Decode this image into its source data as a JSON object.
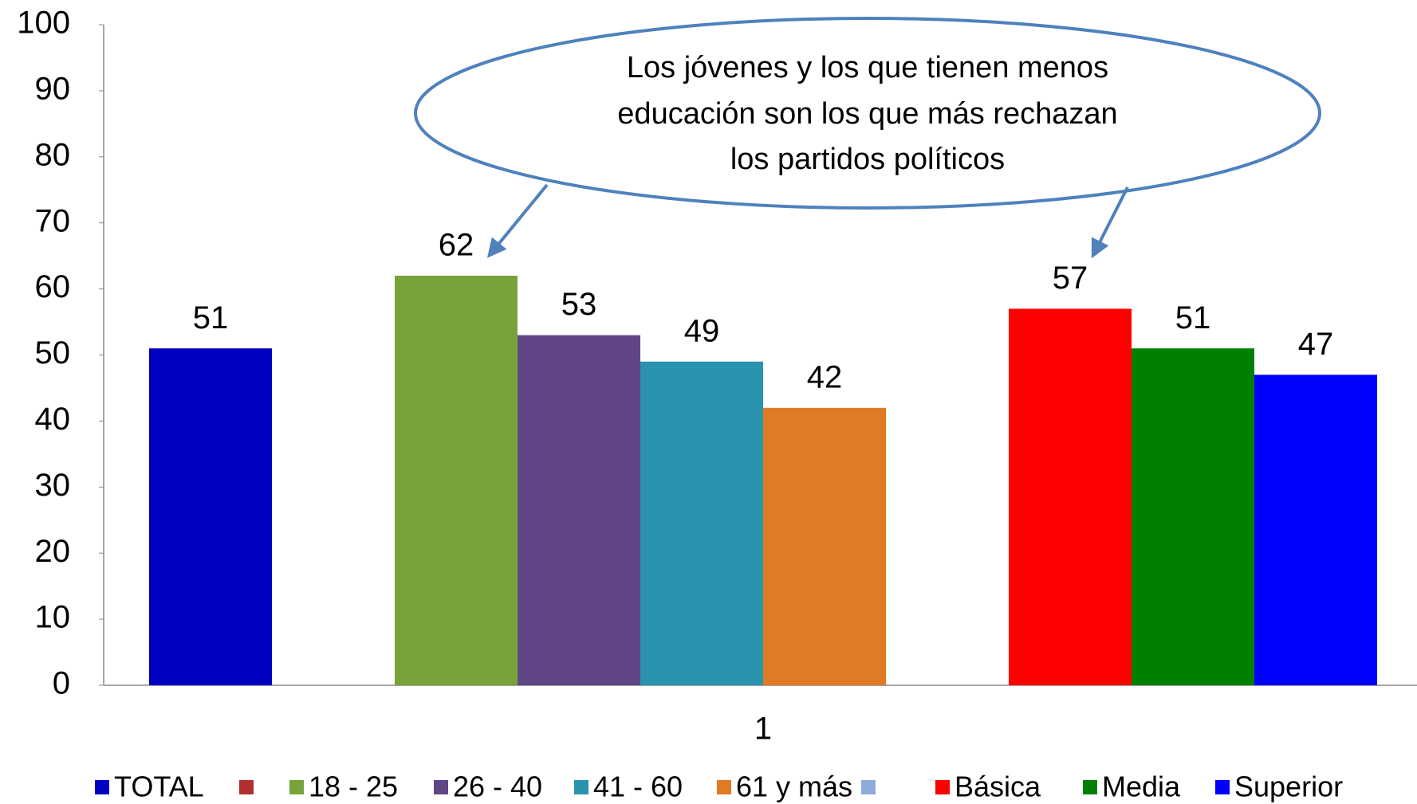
{
  "chart_data": {
    "type": "bar",
    "categories": [
      "1"
    ],
    "series": [
      {
        "name": "TOTAL",
        "color": "#0000c0",
        "values": [
          51
        ]
      },
      {
        "name": null,
        "color": "#b03030",
        "values": [
          null
        ]
      },
      {
        "name": "18 - 25",
        "color": "#77a33a",
        "values": [
          62
        ]
      },
      {
        "name": "26 - 40",
        "color": "#604684",
        "values": [
          53
        ]
      },
      {
        "name": "41 - 60",
        "color": "#2a93ad",
        "values": [
          49
        ]
      },
      {
        "name": "61 y más",
        "color": "#e07a24",
        "values": [
          42
        ]
      },
      {
        "name": null,
        "color": "#8eaadb",
        "values": [
          null
        ]
      },
      {
        "name": "Básica",
        "color": "#ff0000",
        "values": [
          57
        ]
      },
      {
        "name": "Media",
        "color": "#008000",
        "values": [
          51
        ]
      },
      {
        "name": "Superior",
        "color": "#0000ff",
        "values": [
          47
        ]
      }
    ],
    "ylim": [
      0,
      100
    ],
    "yticks": [
      0,
      10,
      20,
      30,
      40,
      50,
      60,
      70,
      80,
      90,
      100
    ],
    "annotation": [
      "Los jóvenes y los que tienen menos",
      "educación son los que más rechazan",
      "los partidos políticos"
    ]
  }
}
